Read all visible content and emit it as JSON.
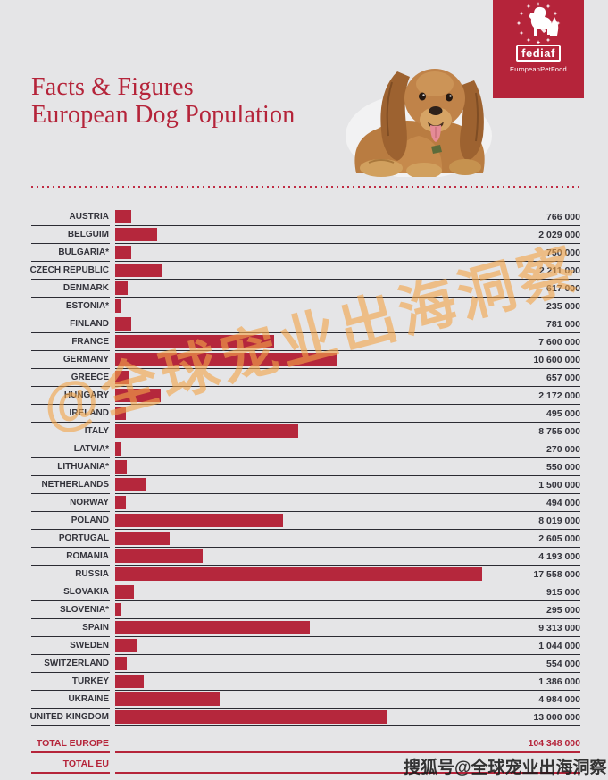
{
  "page": {
    "background": "#e5e5e7",
    "accent_red": "#b5243a",
    "bar_red": "#b5273c",
    "line_color": "#2b2b33",
    "text_color": "#33333b",
    "watermark_orange": "#f2a44a"
  },
  "header": {
    "title_line1": "Facts & Figures",
    "title_line2": "European Dog Population",
    "logo": {
      "brand": "fediaf",
      "subtitle": "EuropeanPetFood"
    }
  },
  "watermarks": {
    "diagonal": "@全球宠业出海洞察",
    "bottom": "搜狐号@全球宠业出海洞察"
  },
  "chart_data": {
    "type": "bar",
    "orientation": "horizontal",
    "title": "European Dog Population",
    "unit": "dogs",
    "max_value": 17558000,
    "grid": false,
    "legend": false,
    "categories": [
      "AUSTRIA",
      "BELGUIM",
      "BULGARIA*",
      "CZECH REPUBLIC",
      "DENMARK",
      "ESTONIA*",
      "FINLAND",
      "FRANCE",
      "GERMANY",
      "GREECE",
      "HUNGARY",
      "IRELAND",
      "ITALY",
      "LATVIA*",
      "LITHUANIA*",
      "NETHERLANDS",
      "NORWAY",
      "POLAND",
      "PORTUGAL",
      "ROMANIA",
      "RUSSIA",
      "SLOVAKIA",
      "SLOVENIA*",
      "SPAIN",
      "SWEDEN",
      "SWITZERLAND",
      "TURKEY",
      "UKRAINE",
      "UNITED KINGDOM"
    ],
    "values": [
      766000,
      2029000,
      750000,
      2211000,
      617000,
      235000,
      781000,
      7600000,
      10600000,
      657000,
      2172000,
      495000,
      8755000,
      270000,
      550000,
      1500000,
      494000,
      8019000,
      2605000,
      4193000,
      17558000,
      915000,
      295000,
      9313000,
      1044000,
      554000,
      1386000,
      4984000,
      13000000
    ],
    "display_values": [
      "766 000",
      "2 029 000",
      "750 000",
      "2 211 000",
      "617 000",
      "235 000",
      "781 000",
      "7 600 000",
      "10 600 000",
      "657 000",
      "2 172 000",
      "495 000",
      "8 755 000",
      "270 000",
      "550 000",
      "1 500 000",
      "494 000",
      "8 019 000",
      "2 605 000",
      "4 193 000",
      "17 558 000",
      "915 000",
      "295 000",
      "9 313 000",
      "1 044 000",
      "554 000",
      "1 386 000",
      "4 984 000",
      "13 000 000"
    ],
    "totals": [
      {
        "label": "TOTAL EUROPE",
        "display_value": "104 348 000"
      },
      {
        "label": "TOTAL EU",
        "display_value": ""
      }
    ]
  }
}
